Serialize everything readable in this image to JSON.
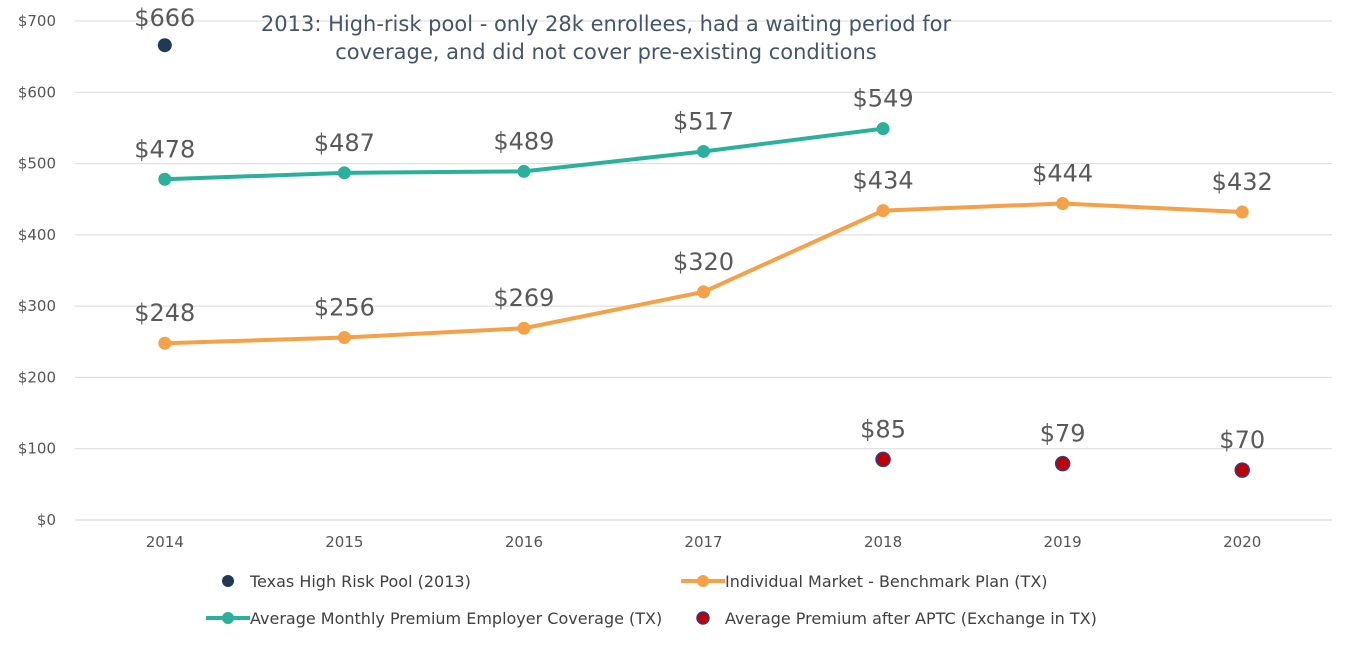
{
  "chart_data": {
    "type": "line",
    "title": "",
    "xlabel": "",
    "ylabel": "",
    "x": [
      "2014",
      "2015",
      "2016",
      "2017",
      "2018",
      "2019",
      "2020"
    ],
    "ylim": [
      0,
      700
    ],
    "yticks": [
      0,
      100,
      200,
      300,
      400,
      500,
      600,
      700
    ],
    "ytick_labels": [
      "$0",
      "$100",
      "$200",
      "$300",
      "$400",
      "$500",
      "$600",
      "$700"
    ],
    "grid": "horizontal",
    "legend_position": "bottom",
    "annotation": {
      "lines": [
        "2013: High-risk pool  - only 28k enrollees, had a waiting period for",
        "coverage, and did not cover pre-existing conditions"
      ]
    },
    "series": [
      {
        "name": "Texas High Risk Pool (2013)",
        "style": "marker",
        "color": "#1f3a52",
        "values": [
          666,
          null,
          null,
          null,
          null,
          null,
          null
        ],
        "labels": [
          "$666",
          "",
          "",
          "",
          "",
          "",
          ""
        ]
      },
      {
        "name": "Individual Market  - Benchmark Plan (TX)",
        "style": "line",
        "color": "#f4a147",
        "values": [
          248,
          256,
          269,
          320,
          434,
          444,
          432
        ],
        "labels": [
          "$248",
          "$256",
          "$269",
          "$320",
          "$434",
          "$444",
          "$432"
        ]
      },
      {
        "name": "Average Monthly Premium Employer Coverage (TX)",
        "style": "line",
        "color": "#2ab09b",
        "values": [
          478,
          487,
          489,
          517,
          549,
          null,
          null
        ],
        "labels": [
          "$478",
          "$487",
          "$489",
          "$517",
          "$549",
          "",
          ""
        ]
      },
      {
        "name": "Average Premium after APTC (Exchange in TX)",
        "style": "marker",
        "color": "#c00000",
        "edge_color": "#2e3b8f",
        "values": [
          null,
          null,
          null,
          null,
          85,
          79,
          70
        ],
        "labels": [
          "",
          "",
          "",
          "",
          "$85",
          "$79",
          "$70"
        ]
      }
    ]
  }
}
